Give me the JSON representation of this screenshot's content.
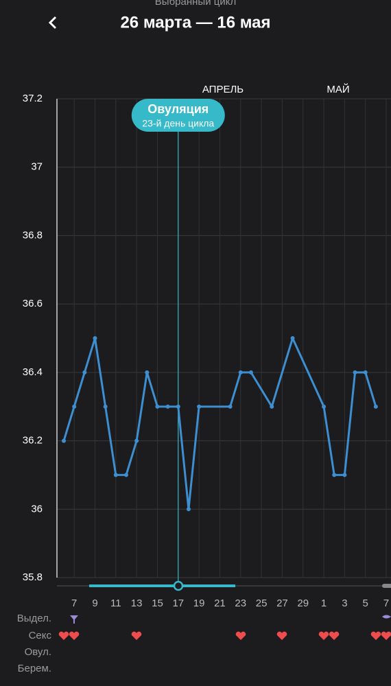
{
  "header": {
    "subtitle": "Выбранный цикл",
    "title": "26 марта — 16 мая"
  },
  "chart_data": {
    "type": "line",
    "months": [
      "АПРЕЛЬ",
      "МАЙ"
    ],
    "x": [
      0,
      1,
      2,
      3,
      4,
      5,
      6,
      7,
      8,
      9,
      10,
      11,
      12,
      13,
      16,
      17,
      18,
      20,
      22,
      25,
      26,
      27,
      28,
      29,
      30
    ],
    "series": [
      {
        "name": "Температура",
        "color": "#3d8fd1",
        "values": [
          36.2,
          36.3,
          36.4,
          36.5,
          36.3,
          36.1,
          36.1,
          36.2,
          36.4,
          36.3,
          36.3,
          36.3,
          36.0,
          36.3,
          36.3,
          36.4,
          36.4,
          36.3,
          36.5,
          36.3,
          36.1,
          36.1,
          36.4,
          36.4,
          36.3
        ]
      }
    ],
    "xlim": [
      -0.66,
      31.46
    ],
    "xticks": [
      {
        "value": 1,
        "label": "7"
      },
      {
        "value": 3,
        "label": "9"
      },
      {
        "value": 5,
        "label": "11"
      },
      {
        "value": 7,
        "label": "13"
      },
      {
        "value": 9,
        "label": "15"
      },
      {
        "value": 11,
        "label": "17"
      },
      {
        "value": 13,
        "label": "19"
      },
      {
        "value": 15,
        "label": "21"
      },
      {
        "value": 17,
        "label": "23"
      },
      {
        "value": 19,
        "label": "25"
      },
      {
        "value": 21,
        "label": "27"
      },
      {
        "value": 23,
        "label": "29"
      },
      {
        "value": 25,
        "label": "1"
      },
      {
        "value": 27,
        "label": "3"
      },
      {
        "value": 29,
        "label": "5"
      },
      {
        "value": 31,
        "label": "7"
      }
    ],
    "ylim": [
      35.8,
      37.2
    ],
    "yticks": [
      {
        "value": 35.8,
        "label": "35.8"
      },
      36,
      {
        "value": 36.2,
        "label": "36.2"
      },
      {
        "value": 36.4,
        "label": "36.4"
      },
      {
        "value": 36.6,
        "label": "36.6"
      },
      {
        "value": 36.8,
        "label": "36.8"
      },
      37,
      {
        "value": 37.2,
        "label": "37.2"
      }
    ],
    "grid": true,
    "ovulation": {
      "label": "Овуляция",
      "sublabel": "23-й день цикла",
      "x": 11,
      "color": "#36b9c9"
    }
  },
  "rows": [
    "Выдел.",
    "Секс",
    "Овул.",
    "Берем."
  ]
}
